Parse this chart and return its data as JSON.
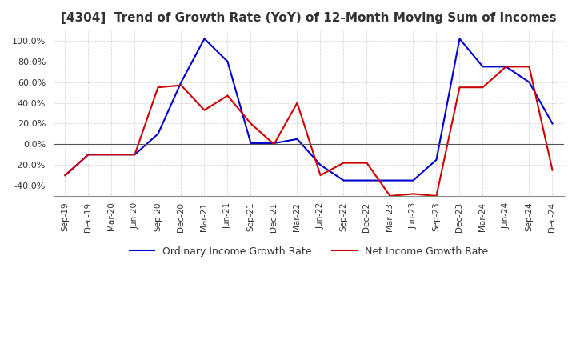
{
  "title": "[4304]  Trend of Growth Rate (YoY) of 12-Month Moving Sum of Incomes",
  "title_fontsize": 11,
  "ylim": [
    -0.5,
    1.1
  ],
  "yticks": [
    -0.4,
    -0.2,
    0.0,
    0.2,
    0.4,
    0.6,
    0.8,
    1.0
  ],
  "background_color": "#ffffff",
  "grid_color": "#aaaaaa",
  "legend_labels": [
    "Ordinary Income Growth Rate",
    "Net Income Growth Rate"
  ],
  "legend_colors": [
    "#0000cc",
    "#cc0000"
  ],
  "x_labels": [
    "Sep-19",
    "Dec-19",
    "Mar-20",
    "Jun-20",
    "Sep-20",
    "Dec-20",
    "Mar-21",
    "Jun-21",
    "Sep-21",
    "Dec-21",
    "Mar-22",
    "Jun-22",
    "Sep-22",
    "Dec-22",
    "Mar-23",
    "Jun-23",
    "Sep-23",
    "Dec-23",
    "Mar-24",
    "Jun-24",
    "Sep-24",
    "Dec-24"
  ],
  "ordinary_income": [
    -0.3,
    -0.1,
    -0.1,
    -0.1,
    0.1,
    0.6,
    1.02,
    0.8,
    0.01,
    0.01,
    0.05,
    -0.2,
    -0.35,
    -0.35,
    -0.35,
    -0.35,
    -0.15,
    1.02,
    0.75,
    0.75,
    0.6,
    0.2
  ],
  "net_income": [
    -0.3,
    -0.1,
    -0.1,
    -0.1,
    0.55,
    0.57,
    0.33,
    0.47,
    0.2,
    0.0,
    0.4,
    -0.3,
    -0.18,
    -0.18,
    -0.5,
    -0.48,
    -0.5,
    0.55,
    0.55,
    0.75,
    0.75,
    -0.25
  ]
}
